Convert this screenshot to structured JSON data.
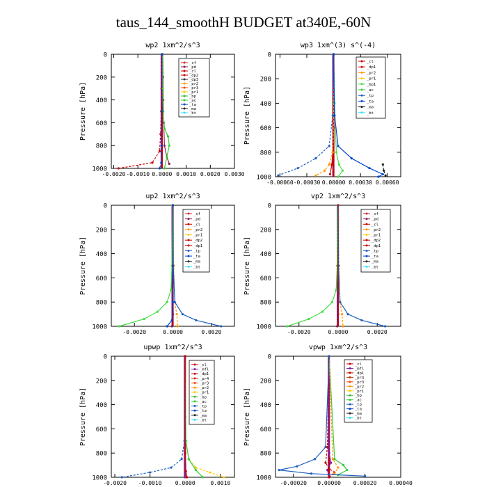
{
  "page": {
    "title": "taus_144_smoothH  BUDGET at340E,-60N"
  },
  "colors": {
    "sf": "#d62728",
    "pd": "#8b1a4a",
    "cl": "#cc0000",
    "dp1": "#cc0000",
    "dp2": "#cc0000",
    "mfl": "#7b1fa2",
    "pr1": "#ffcc00",
    "pr2": "#ff9900",
    "pr3": "#ff4400",
    "pr4": "#cc3300",
    "bp1": "#44dd44",
    "bp": "#33bb33",
    "ac": "#33cc33",
    "tp": "#1f5fbf",
    "ta": "#0044cc",
    "ma": "#222222",
    "bt": "#33e0ff"
  },
  "chart_data": [
    {
      "type": "line",
      "title": "wp2  1xm^2/s^3",
      "ylabel": "Pressure [hPa]",
      "xlim": [
        -0.0021,
        0.003
      ],
      "ylim": [
        1000,
        0
      ],
      "xticks": [
        -0.002,
        -0.001,
        0.0,
        0.001,
        0.002,
        0.003
      ],
      "xtick_labels": [
        "-0.0020",
        "-0.0010",
        "0.0000",
        "0.0010",
        "0.0020",
        "0.0030"
      ],
      "yticks": [
        0,
        200,
        400,
        600,
        800,
        1000
      ],
      "legend_location": "top-right",
      "legend": [
        "_sf",
        "_pd",
        "_cl",
        "_dp2",
        "_dp3",
        "_pr2",
        "_pr3",
        "_pr1",
        "_bp",
        "_ac",
        "_ta",
        "_ma",
        "_bt"
      ],
      "series": [
        {
          "name": "_pd",
          "color": "#8b1a4a",
          "x": [
            3e-05,
            4e-05,
            5e-05,
            7e-05,
            0.0001,
            0.0002,
            0.0003
          ],
          "y": [
            0,
            200,
            400,
            600,
            800,
            900,
            960
          ]
        },
        {
          "name": "_cl",
          "color": "#cc0000",
          "x": [
            -1e-05,
            -2e-05,
            -3e-05,
            -6e-05,
            -0.0001,
            -0.0004,
            -0.0018
          ],
          "y": [
            0,
            300,
            500,
            700,
            850,
            950,
            1000
          ]
        },
        {
          "name": "_ac",
          "color": "#33cc33",
          "x": [
            2e-05,
            3e-05,
            5e-05,
            0.0001,
            0.00025,
            0.0003,
            0.0002,
            0.0001
          ],
          "y": [
            0,
            300,
            500,
            650,
            720,
            800,
            900,
            1000
          ]
        },
        {
          "name": "_ta",
          "color": "#0044cc",
          "x": [
            0.0,
            0.0,
            -1e-05,
            -3e-05,
            -0.0001
          ],
          "y": [
            0,
            500,
            800,
            950,
            1000
          ]
        }
      ]
    },
    {
      "type": "line",
      "title": "wp3  1xm^(3) s^(-4)",
      "ylabel": "Pressure [hPa]",
      "xlim": [
        -0.00065,
        0.00075
      ],
      "ylim": [
        1000,
        0
      ],
      "xticks": [
        -0.0006,
        -0.0003,
        0.0,
        0.0003,
        0.0006
      ],
      "xtick_labels": [
        "-0.00060",
        "-0.00030",
        "0.00000",
        "0.00030",
        "0.00060"
      ],
      "yticks": [
        0,
        200,
        400,
        600,
        800,
        1000
      ],
      "legend_location": "top-right",
      "legend": [
        "_cl",
        "_dp1",
        "_pr2",
        "_pr1",
        "_bp1",
        "_ac",
        "_tp",
        "_ta",
        "_ma",
        "_bt"
      ],
      "series": [
        {
          "name": "_dp1",
          "color": "#cc0000",
          "x": [
            0.0,
            0.0,
            0.0,
            -1e-05,
            -2e-05,
            -4e-05
          ],
          "y": [
            0,
            300,
            600,
            800,
            900,
            980
          ]
        },
        {
          "name": "_pr2",
          "color": "#ff9900",
          "x": [
            0.0,
            0.0,
            -1e-05,
            -5e-05,
            -0.0001,
            -0.0002
          ],
          "y": [
            0,
            500,
            800,
            900,
            950,
            990
          ]
        },
        {
          "name": "_bp1",
          "color": "#44dd44",
          "x": [
            0.0,
            1e-05,
            3e-05,
            6e-05,
            0.0001,
            5e-05
          ],
          "y": [
            0,
            400,
            800,
            900,
            950,
            1000
          ]
        },
        {
          "name": "_tp",
          "color": "#1f5fbf",
          "x": [
            0.0,
            -1e-05,
            -5e-05,
            -0.0002,
            -0.0004,
            -0.00062
          ],
          "y": [
            0,
            500,
            750,
            850,
            930,
            990
          ]
        },
        {
          "name": "_ta",
          "color": "#0044cc",
          "x": [
            0.0,
            1e-05,
            5e-05,
            0.0002,
            0.0004,
            0.00055,
            0.0005
          ],
          "y": [
            0,
            500,
            750,
            850,
            930,
            980,
            1000
          ]
        },
        {
          "name": "_ma",
          "color": "#222222",
          "x": [
            0.00055,
            0.00056,
            0.00058
          ],
          "y": [
            900,
            950,
            990
          ]
        }
      ]
    },
    {
      "type": "line",
      "title": "up2  1xm^2/s^3",
      "ylabel": "Pressure [hPa]",
      "xlim": [
        -0.0032,
        0.0032
      ],
      "ylim": [
        1000,
        0
      ],
      "xticks": [
        -0.002,
        0.0,
        0.002
      ],
      "xtick_labels": [
        "-0.0020",
        "0.0000",
        "0.0020"
      ],
      "yticks": [
        0,
        200,
        400,
        600,
        800,
        1000
      ],
      "legend_location": "top-right",
      "legend": [
        "_sf",
        "_pd",
        "_cl",
        "_pr2",
        "_pr1",
        "_dp2",
        "_dp1",
        "_tp",
        "_ta",
        "_ma",
        "_bt"
      ],
      "series": [
        {
          "name": "_dp1",
          "color": "#44dd44",
          "x": [
            -2e-05,
            -5e-05,
            -0.0001,
            -0.0003,
            -0.0008,
            -0.0015,
            -0.0028
          ],
          "y": [
            0,
            500,
            700,
            800,
            880,
            940,
            1000
          ]
        },
        {
          "name": "_pr2",
          "color": "#ff9900",
          "x": [
            2e-05,
            4e-05,
            0.0001,
            0.0002,
            0.00025
          ],
          "y": [
            0,
            500,
            800,
            900,
            1000
          ]
        },
        {
          "name": "_tp",
          "color": "#1f5fbf",
          "x": [
            0.0,
            2e-05,
            0.0001,
            0.0005,
            0.0012,
            0.0025
          ],
          "y": [
            0,
            500,
            800,
            900,
            950,
            1000
          ]
        },
        {
          "name": "_pd",
          "color": "#8b1a4a",
          "x": [
            0.0,
            0.0,
            0.0,
            -5e-05
          ],
          "y": [
            0,
            500,
            900,
            1000
          ]
        },
        {
          "name": "_ta",
          "color": "#0044cc",
          "x": [
            0.0,
            0.0,
            -5e-05,
            -0.0003
          ],
          "y": [
            0,
            800,
            950,
            1000
          ]
        }
      ]
    },
    {
      "type": "line",
      "title": "vp2  1xm^2/s^3",
      "ylabel": "Pressure [hPa]",
      "xlim": [
        -0.0032,
        0.0032
      ],
      "ylim": [
        1000,
        0
      ],
      "xticks": [
        -0.002,
        0.0,
        0.002
      ],
      "xtick_labels": [
        "-0.0020",
        "0.0000",
        "0.0020"
      ],
      "yticks": [
        0,
        200,
        400,
        600,
        800,
        1000
      ],
      "legend_location": "top-right",
      "legend": [
        "_sf",
        "_pd",
        "_cl",
        "_pr2",
        "_pr1",
        "_dp2",
        "_dp1",
        "_tp",
        "_ta",
        "_ma",
        "_bt"
      ],
      "series": [
        {
          "name": "_dp1",
          "color": "#44dd44",
          "x": [
            -2e-05,
            -5e-05,
            -0.0001,
            -0.0003,
            -0.0008,
            -0.0015,
            -0.0026
          ],
          "y": [
            0,
            500,
            700,
            800,
            880,
            940,
            1000
          ]
        },
        {
          "name": "_pr2",
          "color": "#ff9900",
          "x": [
            2e-05,
            4e-05,
            0.0001,
            0.0002,
            0.00025
          ],
          "y": [
            0,
            500,
            800,
            900,
            1000
          ]
        },
        {
          "name": "_tp",
          "color": "#1f5fbf",
          "x": [
            0.0,
            2e-05,
            0.0001,
            0.0005,
            0.0012,
            0.0024
          ],
          "y": [
            0,
            500,
            800,
            900,
            950,
            1000
          ]
        },
        {
          "name": "_pd",
          "color": "#8b1a4a",
          "x": [
            0.0,
            0.0,
            0.0,
            -5e-05
          ],
          "y": [
            0,
            500,
            900,
            1000
          ]
        }
      ]
    },
    {
      "type": "line",
      "title": "upwp  1xm^2/s^3",
      "ylabel": "Pressure [hPa]",
      "xlim": [
        -0.0021,
        0.0014
      ],
      "ylim": [
        1000,
        0
      ],
      "xticks": [
        -0.002,
        -0.001,
        0.0,
        0.001
      ],
      "xtick_labels": [
        "-0.0020",
        "-0.0010",
        "0.0000",
        "0.0010"
      ],
      "yticks": [
        0,
        200,
        400,
        600,
        800,
        1000
      ],
      "legend_location": "top-right",
      "legend": [
        "_cl",
        "_mfl",
        "_dp1",
        "_pr4",
        "_pr3",
        "_pr2",
        "_pr1",
        "_bp",
        "_ac",
        "_tp",
        "_ta",
        "_ma",
        "_bt"
      ],
      "series": [
        {
          "name": "_mfl",
          "color": "#7b1fa2",
          "x": [
            0.0,
            0.0,
            0.0,
            0.0
          ],
          "y": [
            0,
            500,
            900,
            1000
          ]
        },
        {
          "name": "_pr1",
          "color": "#ffcc00",
          "x": [
            0.0,
            2e-05,
            0.0001,
            0.0003,
            0.0007,
            0.0011
          ],
          "y": [
            0,
            700,
            850,
            920,
            960,
            1000
          ]
        },
        {
          "name": "_ac",
          "color": "#33cc33",
          "x": [
            0.0,
            2e-05,
            0.0001,
            0.0003,
            0.0005
          ],
          "y": [
            0,
            700,
            850,
            940,
            1000
          ]
        },
        {
          "name": "_tp",
          "color": "#1f5fbf",
          "x": [
            0.0,
            -2e-05,
            -0.0001,
            -0.0004,
            -0.001,
            -0.0018
          ],
          "y": [
            0,
            700,
            850,
            920,
            960,
            1000
          ]
        },
        {
          "name": "_dp1",
          "color": "#cc0000",
          "x": [
            0.0,
            0.0,
            2e-05,
            5e-05
          ],
          "y": [
            0,
            800,
            950,
            1000
          ]
        }
      ]
    },
    {
      "type": "line",
      "title": "vpwp  1xm^2/s^3",
      "ylabel": "Pressure [hPa]",
      "xlim": [
        -0.0003,
        0.0004
      ],
      "ylim": [
        1000,
        0
      ],
      "xticks": [
        -0.0002,
        0.0,
        0.0002,
        0.0004
      ],
      "xtick_labels": [
        "-0.00020",
        "0.00000",
        "0.00020",
        "0.00040"
      ],
      "yticks": [
        0,
        200,
        400,
        600,
        800,
        1000
      ],
      "legend_location": "top-right",
      "legend": [
        "_cl",
        "_mfl",
        "_dp1",
        "_pr4",
        "_pr3",
        "_pr2",
        "_pr1",
        "_bp",
        "_ac",
        "_tp",
        "_ta",
        "_ma",
        "_bt"
      ],
      "series": [
        {
          "name": "_mfl",
          "color": "#7b1fa2",
          "x": [
            0.0,
            0.0,
            0.0,
            1e-05,
            -1e-05,
            0.0
          ],
          "y": [
            0,
            500,
            800,
            880,
            940,
            1000
          ]
        },
        {
          "name": "_cl",
          "color": "#cc0000",
          "x": [
            0.0,
            -1e-05,
            -2e-05,
            0.0,
            3e-05,
            0.0
          ],
          "y": [
            0,
            750,
            880,
            930,
            960,
            1000
          ]
        },
        {
          "name": "_ac",
          "color": "#33cc33",
          "x": [
            0.0,
            3e-05,
            8e-05,
            0.0001,
            5e-05
          ],
          "y": [
            0,
            850,
            900,
            940,
            980
          ]
        },
        {
          "name": "_pr2",
          "color": "#ff9900",
          "x": [
            0.0,
            2e-05,
            5e-05,
            3e-05
          ],
          "y": [
            0,
            850,
            920,
            970
          ]
        },
        {
          "name": "_tp",
          "color": "#1f5fbf",
          "x": [
            0.0,
            -2e-05,
            -8e-05,
            -0.00018,
            -0.00028,
            -0.0001,
            0.0002
          ],
          "y": [
            0,
            750,
            850,
            910,
            940,
            970,
            990
          ]
        }
      ]
    }
  ]
}
